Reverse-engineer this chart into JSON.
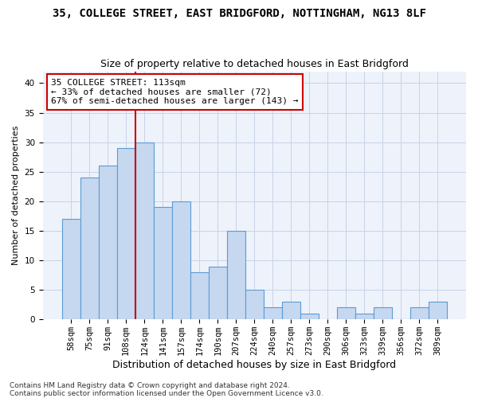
{
  "title_line1": "35, COLLEGE STREET, EAST BRIDGFORD, NOTTINGHAM, NG13 8LF",
  "title_line2": "Size of property relative to detached houses in East Bridgford",
  "xlabel": "Distribution of detached houses by size in East Bridgford",
  "ylabel": "Number of detached properties",
  "categories": [
    "58sqm",
    "75sqm",
    "91sqm",
    "108sqm",
    "124sqm",
    "141sqm",
    "157sqm",
    "174sqm",
    "190sqm",
    "207sqm",
    "224sqm",
    "240sqm",
    "257sqm",
    "273sqm",
    "290sqm",
    "306sqm",
    "323sqm",
    "339sqm",
    "356sqm",
    "372sqm",
    "389sqm"
  ],
  "values": [
    17,
    24,
    26,
    29,
    30,
    19,
    20,
    8,
    9,
    15,
    5,
    2,
    3,
    1,
    0,
    2,
    1,
    2,
    0,
    2,
    3
  ],
  "bar_color": "#c5d8f0",
  "bar_edge_color": "#5b9bd5",
  "vline_color": "#cc0000",
  "vline_x_index": 3.5,
  "annotation_box_text": "35 COLLEGE STREET: 113sqm\n← 33% of detached houses are smaller (72)\n67% of semi-detached houses are larger (143) →",
  "ylim": [
    0,
    42
  ],
  "yticks": [
    0,
    5,
    10,
    15,
    20,
    25,
    30,
    35,
    40
  ],
  "grid_color": "#c8d4e8",
  "background_color": "#eef2fa",
  "footer": "Contains HM Land Registry data © Crown copyright and database right 2024.\nContains public sector information licensed under the Open Government Licence v3.0.",
  "title_fontsize": 10,
  "subtitle_fontsize": 9,
  "xlabel_fontsize": 9,
  "ylabel_fontsize": 8,
  "tick_fontsize": 7.5,
  "annotation_fontsize": 8,
  "footer_fontsize": 6.5
}
